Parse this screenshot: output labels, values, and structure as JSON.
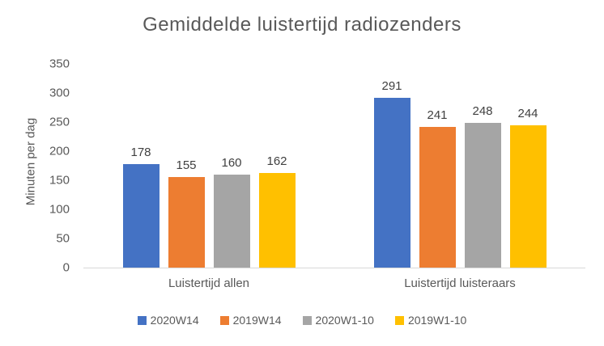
{
  "chart_data": {
    "type": "bar",
    "title": "Gemiddelde luistertijd radiozenders",
    "ylabel": "Minuten per dag",
    "xlabel": "",
    "categories": [
      "Luistertijd allen",
      "Luistertijd luisteraars"
    ],
    "series": [
      {
        "name": "2020W14",
        "color": "#4472C4",
        "values": [
          178,
          291
        ]
      },
      {
        "name": "2019W14",
        "color": "#ED7D31",
        "values": [
          155,
          241
        ]
      },
      {
        "name": "2020W1-10",
        "color": "#A5A5A5",
        "values": [
          160,
          248
        ]
      },
      {
        "name": "2019W1-10",
        "color": "#FFC000",
        "values": [
          162,
          244
        ]
      }
    ],
    "ylim": [
      0,
      350
    ],
    "yticks": [
      0,
      50,
      100,
      150,
      200,
      250,
      300,
      350
    ],
    "grid": false,
    "data_labels": true,
    "legend_position": "bottom"
  },
  "colors": {
    "title_text": "#595959",
    "axis_text": "#595959",
    "data_label_text": "#404040",
    "axis_line": "#D9D9D9",
    "background": "#FFFFFF"
  }
}
